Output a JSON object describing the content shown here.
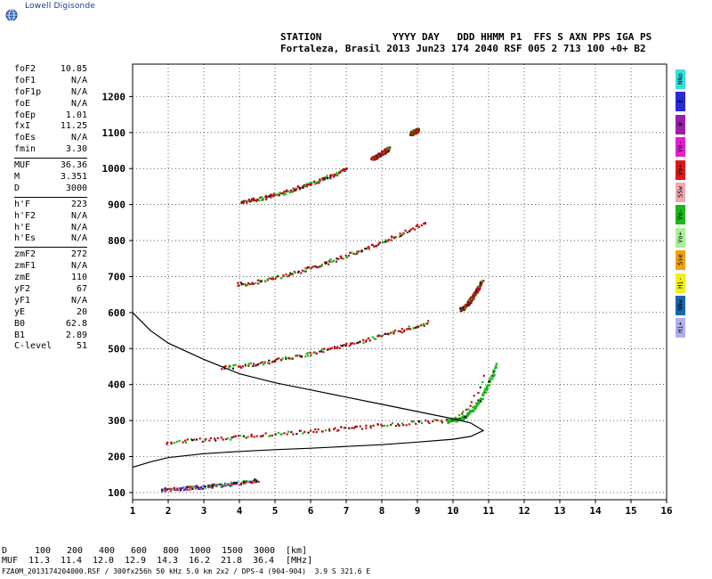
{
  "logo": {
    "text": "Lowell Digisonde"
  },
  "header": {
    "line1": "STATION            YYYY DAY   DDD HHMM P1  FFS S AXN PPS IGA PS",
    "line2": "Fortaleza, Brasil 2013 Jun23 174 2040 RSF 005 2 713 100 +0+ B2"
  },
  "params": {
    "groups": [
      [
        {
          "k": "foF2",
          "v": "10.85"
        },
        {
          "k": "foF1",
          "v": "N/A"
        },
        {
          "k": "foF1p",
          "v": "N/A"
        },
        {
          "k": "foE",
          "v": "N/A"
        },
        {
          "k": "foEp",
          "v": "1.01"
        },
        {
          "k": "fxI",
          "v": "11.25"
        },
        {
          "k": "foEs",
          "v": "N/A"
        },
        {
          "k": "fmin",
          "v": "3.30"
        }
      ],
      [
        {
          "k": "MUF",
          "v": "36.36"
        },
        {
          "k": "M",
          "v": "3.351"
        },
        {
          "k": "D",
          "v": "3000"
        }
      ],
      [
        {
          "k": "h'F",
          "v": "223"
        },
        {
          "k": "h'F2",
          "v": "N/A"
        },
        {
          "k": "h'E",
          "v": "N/A"
        },
        {
          "k": "h'Es",
          "v": "N/A"
        }
      ],
      [
        {
          "k": "zmF2",
          "v": "272"
        },
        {
          "k": "zmF1",
          "v": "N/A"
        },
        {
          "k": "zmE",
          "v": "110"
        },
        {
          "k": "yF2",
          "v": "67"
        },
        {
          "k": "yF1",
          "v": "N/A"
        },
        {
          "k": "yE",
          "v": "20"
        },
        {
          "k": "B0",
          "v": "62.8"
        },
        {
          "k": "B1",
          "v": "2.89"
        },
        {
          "k": "C-level",
          "v": "51"
        }
      ]
    ]
  },
  "legend": [
    {
      "label": "NNo",
      "color": "#36e0e0"
    },
    {
      "label": "E",
      "color": "#2a2ad8"
    },
    {
      "label": "W",
      "color": "#9b1fa8"
    },
    {
      "label": "Vo-",
      "color": "#e020d0"
    },
    {
      "label": "Vo+",
      "color": "#e01818"
    },
    {
      "label": "SSw",
      "color": "#f0a8b0"
    },
    {
      "label": "Vo-",
      "color": "#18b818"
    },
    {
      "label": "Vo+",
      "color": "#a8f098"
    },
    {
      "label": "Sse",
      "color": "#f0a010"
    },
    {
      "label": "Hi-",
      "color": "#f0f018"
    },
    {
      "label": "NNw",
      "color": "#1868b0"
    },
    {
      "label": "Hi+",
      "color": "#b0b0f0"
    }
  ],
  "footer": {
    "d_label": "D",
    "d_values": [
      "100",
      "200",
      "400",
      "600",
      "800",
      "1000",
      "1500",
      "3000"
    ],
    "d_unit": "[km]",
    "muf_label": "MUF",
    "muf_values": [
      "11.3",
      "11.4",
      "12.0",
      "12.9",
      "14.3",
      "16.2",
      "21.8",
      "36.4"
    ],
    "muf_unit": "[MHz]",
    "filename": "FZA0M_2013174204000.RSF / 300fx256h 50 kHz 5.0 km 2x2 / DPS-4 (904-904)  3.9 S 321.6 E"
  },
  "chart_data": {
    "type": "scatter",
    "x_ticks": [
      1,
      2,
      3,
      4,
      5,
      6,
      7,
      8,
      9,
      10,
      11,
      12,
      13,
      14,
      15,
      16
    ],
    "y_ticks": [
      100,
      200,
      300,
      400,
      500,
      600,
      700,
      800,
      900,
      1000,
      1100,
      1200
    ],
    "xlim": [
      1,
      16
    ],
    "ylim": [
      80,
      1290
    ],
    "grid": true,
    "profile_curve": [
      [
        1.0,
        600
      ],
      [
        1.5,
        550
      ],
      [
        2.0,
        515
      ],
      [
        3.0,
        470
      ],
      [
        4.0,
        430
      ],
      [
        5.0,
        405
      ],
      [
        6.0,
        385
      ],
      [
        7.0,
        365
      ],
      [
        8.0,
        345
      ],
      [
        9.0,
        325
      ],
      [
        10.0,
        305
      ],
      [
        10.5,
        293
      ],
      [
        10.85,
        272
      ],
      [
        10.5,
        256
      ],
      [
        10.0,
        248
      ],
      [
        9.0,
        240
      ],
      [
        8.0,
        233
      ],
      [
        7.0,
        228
      ],
      [
        6.0,
        223
      ],
      [
        5.0,
        219
      ],
      [
        4.0,
        214
      ],
      [
        3.0,
        208
      ],
      [
        2.0,
        197
      ],
      [
        1.5,
        185
      ],
      [
        1.0,
        170
      ]
    ],
    "echo_traces": [
      {
        "name": "E-layer",
        "color": "#1a1a1a",
        "x": [
          1.8,
          4.5
        ],
        "y": [
          110,
          135
        ]
      },
      {
        "name": "F-trace",
        "color": "#b81010",
        "x": [
          1.9,
          10.85
        ],
        "y": [
          240,
          430
        ]
      },
      {
        "name": "F-trace-2",
        "color": "#b81010",
        "x": [
          3.5,
          9.3
        ],
        "y": [
          450,
          575
        ]
      },
      {
        "name": "F-trace-3",
        "color": "#b81010",
        "x": [
          3.9,
          9.2
        ],
        "y": [
          680,
          850
        ]
      },
      {
        "name": "F-trace-4",
        "color": "#b81010",
        "x": [
          4.0,
          7.0
        ],
        "y": [
          910,
          1000
        ]
      },
      {
        "name": "F-trace-5",
        "color": "#b81010",
        "x": [
          7.7,
          8.2
        ],
        "y": [
          1030,
          1060
        ]
      },
      {
        "name": "F-trace-6",
        "color": "#b81010",
        "x": [
          8.8,
          9.0
        ],
        "y": [
          1100,
          1110
        ]
      },
      {
        "name": "X-trace",
        "color": "#18b818",
        "x": [
          9.8,
          11.2
        ],
        "y": [
          300,
          460
        ]
      },
      {
        "name": "spread",
        "color": "#b81010",
        "x": [
          10.2,
          10.8
        ],
        "y": [
          610,
          690
        ]
      }
    ]
  }
}
